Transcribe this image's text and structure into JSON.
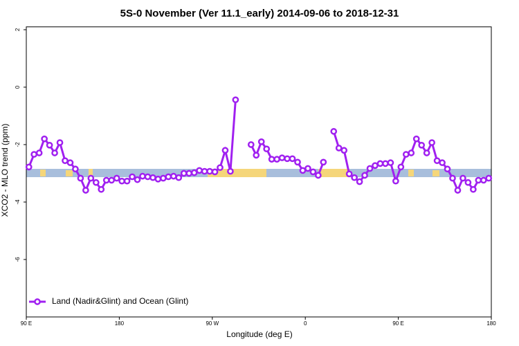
{
  "chart_data": {
    "type": "line",
    "title": "5S-0 November (Ver 11.1_early)   2014-09-06 to 2018-12-31",
    "x_label": "Longitude (deg E)",
    "y_label": "XCO2 - MLO trend (ppm)",
    "xlim": [
      90,
      540
    ],
    "ylim": [
      -8,
      2.1
    ],
    "xticks": [
      {
        "value": 90,
        "label": "90 E"
      },
      180,
      {
        "value": 270,
        "label": "90 W"
      },
      {
        "value": 360,
        "label": "0"
      },
      {
        "value": 450,
        "label": "90 E"
      },
      {
        "value": 540,
        "label": "180"
      }
    ],
    "yticks": [
      -6,
      -4,
      -2,
      0,
      2
    ],
    "legend": "bottom-left",
    "series": [
      {
        "name": "Land (Nadir&Glint) and Ocean (Glint)",
        "color": "#a020f0",
        "x": [
          92.5,
          97.5,
          102.5,
          107.5,
          112.5,
          117.5,
          122.5,
          127.5,
          132.5,
          137.5,
          142.5,
          147.5,
          152.5,
          157.5,
          162.5,
          167.5,
          172.5,
          177.5,
          182.5,
          187.5,
          192.5,
          197.5,
          202.5,
          207.5,
          212.5,
          217.5,
          222.5,
          227.5,
          232.5,
          237.5,
          242.5,
          247.5,
          252.5,
          257.5,
          262.5,
          267.5,
          272.5,
          277.5,
          282.5,
          287.5,
          292.5,
          297.5,
          302.5,
          307.5,
          312.5,
          317.5,
          322.5,
          327.5,
          332.5,
          337.5,
          342.5,
          347.5,
          352.5,
          357.5,
          362.5,
          367.5,
          372.5,
          377.5,
          382.5,
          387.5,
          392.5,
          397.5,
          402.5,
          407.5,
          412.5,
          417.5,
          422.5,
          427.5,
          432.5,
          437.5,
          442.5,
          447.5,
          452.5,
          457.5,
          462.5,
          467.5,
          472.5,
          477.5,
          482.5,
          487.5,
          492.5,
          497.5,
          502.5,
          507.5,
          512.5,
          517.5,
          522.5,
          527.5,
          532.5,
          537.5
        ],
        "values": [
          -2.78,
          -2.34,
          -2.29,
          -1.8,
          -2.02,
          -2.29,
          -1.93,
          -2.56,
          -2.63,
          -2.85,
          -3.17,
          -3.59,
          -3.17,
          -3.32,
          -3.56,
          -3.24,
          -3.24,
          -3.17,
          -3.27,
          -3.27,
          -3.12,
          -3.22,
          -3.1,
          -3.12,
          -3.15,
          -3.2,
          -3.17,
          -3.12,
          -3.1,
          -3.15,
          -3.0,
          -3.0,
          -2.98,
          -2.9,
          -2.93,
          -2.93,
          -2.95,
          -2.8,
          -2.2,
          -2.93,
          -0.44,
          null,
          null,
          -2.0,
          -2.37,
          -1.9,
          -2.15,
          -2.51,
          -2.51,
          -2.46,
          -2.49,
          -2.49,
          -2.61,
          -2.9,
          -2.83,
          -2.95,
          -3.07,
          -2.61,
          null,
          -1.54,
          -2.12,
          -2.2,
          -3.02,
          -3.15,
          -3.29,
          -3.07,
          -2.83,
          -2.73,
          -2.66,
          -2.66,
          -2.63,
          -3.27,
          -2.78,
          -2.34,
          -2.29,
          -1.8,
          -2.02,
          -2.29,
          -1.93,
          -2.56,
          -2.63,
          -2.85,
          -3.17,
          -3.59,
          -3.17,
          -3.32,
          -3.56,
          -3.24,
          -3.24,
          -3.17
        ]
      }
    ]
  }
}
